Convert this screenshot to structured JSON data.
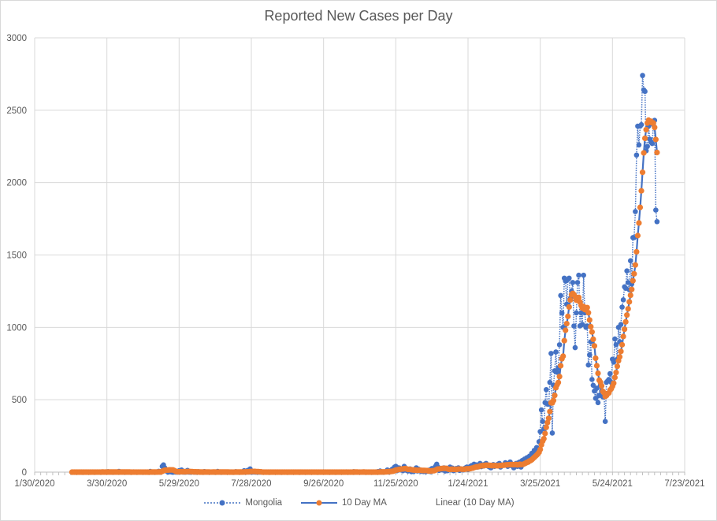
{
  "chart_data": {
    "type": "line",
    "title": "Reported New Cases per Day",
    "xlabel": "",
    "ylabel": "",
    "x_ticks": [
      "1/30/2020",
      "3/30/2020",
      "5/29/2020",
      "7/28/2020",
      "9/26/2020",
      "11/25/2020",
      "1/24/2021",
      "3/25/2021",
      "5/24/2021",
      "7/23/2021"
    ],
    "xlim": [
      "1/30/2020",
      "7/23/2021"
    ],
    "ylim": [
      0,
      3000
    ],
    "y_ticks": [
      0,
      500,
      1000,
      1500,
      2000,
      2500,
      3000
    ],
    "grid": true,
    "legend_position": "bottom",
    "x_start": "3/1/2020",
    "x_step": "1 day",
    "series": [
      {
        "name": "Mongolia",
        "color": "#4472C4",
        "style": "dotted line with circle markers",
        "values": [
          0,
          0,
          0,
          0,
          0,
          0,
          0,
          0,
          1,
          0,
          0,
          0,
          0,
          0,
          1,
          0,
          0,
          1,
          0,
          1,
          0,
          0,
          1,
          0,
          0,
          2,
          0,
          0,
          1,
          1,
          3,
          0,
          0,
          0,
          1,
          0,
          0,
          0,
          0,
          5,
          2,
          0,
          0,
          0,
          0,
          0,
          0,
          0,
          0,
          0,
          1,
          2,
          0,
          0,
          0,
          0,
          1,
          0,
          0,
          0,
          1,
          0,
          0,
          0,
          0,
          5,
          0,
          0,
          0,
          0,
          1,
          0,
          6,
          0,
          3,
          40,
          50,
          30,
          10,
          5,
          0,
          12,
          3,
          0,
          0,
          2,
          0,
          0,
          0,
          10,
          0,
          15,
          0,
          0,
          5,
          0,
          12,
          0,
          0,
          0,
          2,
          0,
          0,
          0,
          0,
          3,
          0,
          0,
          0,
          0,
          4,
          0,
          0,
          0,
          0,
          0,
          0,
          1,
          0,
          0,
          0,
          5,
          0,
          0,
          0,
          0,
          0,
          0,
          0,
          0,
          0,
          0,
          2,
          0,
          0,
          0,
          3,
          0,
          0,
          0,
          0,
          0,
          0,
          10,
          0,
          0,
          12,
          0,
          22,
          0,
          0,
          2,
          0,
          0,
          0,
          0,
          0,
          0,
          2,
          0,
          0,
          0,
          0,
          0,
          0,
          0,
          0,
          0,
          1,
          0,
          0,
          0,
          0,
          0,
          0,
          0,
          0,
          0,
          0,
          1,
          0,
          0,
          0,
          0,
          0,
          0,
          0,
          0,
          0,
          0,
          0,
          0,
          0,
          0,
          0,
          0,
          0,
          1,
          0,
          0,
          0,
          0,
          0,
          0,
          0,
          0,
          0,
          0,
          0,
          2,
          0,
          0,
          0,
          0,
          0,
          0,
          0,
          0,
          0,
          0,
          1,
          0,
          0,
          0,
          0,
          0,
          0,
          0,
          2,
          0,
          0,
          0,
          0,
          0,
          3,
          0,
          0,
          0,
          0,
          0,
          0,
          0,
          2,
          0,
          0,
          0,
          0,
          0,
          0,
          0,
          0,
          0,
          0,
          0,
          4,
          0,
          8,
          0,
          0,
          1,
          2,
          3,
          15,
          0,
          10,
          5,
          20,
          12,
          35,
          40,
          10,
          30,
          28,
          15,
          20,
          10,
          40,
          18,
          12,
          8,
          15,
          22,
          3,
          10,
          5,
          12,
          30,
          8,
          20,
          10,
          5,
          12,
          4,
          8,
          3,
          10,
          6,
          15,
          3,
          25,
          10,
          20,
          40,
          55,
          35,
          12,
          20,
          25,
          15,
          30,
          8,
          18,
          10,
          22,
          35,
          15,
          28,
          10,
          20,
          25,
          18,
          30,
          12,
          22,
          20,
          15,
          25,
          30,
          35,
          18,
          25,
          40,
          45,
          30,
          55,
          40,
          50,
          35,
          45,
          60,
          38,
          50,
          42,
          55,
          60,
          45,
          40,
          35,
          30,
          48,
          52,
          40,
          45,
          50,
          55,
          60,
          35,
          45,
          48,
          50,
          65,
          55,
          40,
          60,
          70,
          45,
          50,
          30,
          55,
          60,
          40,
          65,
          70,
          35,
          80,
          60,
          90,
          75,
          100,
          85,
          110,
          95,
          130,
          120,
          150,
          140,
          170,
          160,
          210,
          280,
          430,
          350,
          300,
          480,
          570,
          470,
          470,
          620,
          820,
          270,
          600,
          700,
          830,
          690,
          720,
          880,
          1220,
          1100,
          1000,
          1340,
          1320,
          1160,
          1330,
          1340,
          1200,
          1250,
          1310,
          1010,
          860,
          1100,
          1310,
          1360,
          1010,
          1100,
          1020,
          1360,
          1100,
          1000,
          1010,
          740,
          810,
          900,
          640,
          600,
          560,
          510,
          580,
          480,
          530,
          600,
          560,
          520,
          540,
          350,
          620,
          630,
          640,
          680,
          620,
          780,
          760,
          920,
          880,
          780,
          1000,
          900,
          1020,
          1140,
          1190,
          1280,
          1270,
          1390,
          1310,
          1260,
          1460,
          1300,
          1620,
          1620,
          1800,
          2190,
          2390,
          2260,
          2390,
          2400,
          2740,
          2640,
          2630,
          2220,
          2250,
          2390,
          2300,
          2280,
          2270,
          2400,
          2430,
          1810,
          1730
        ]
      },
      {
        "name": "10 Day MA",
        "color": "#ED7D31",
        "line_color": "#4472C4",
        "style": "solid line with circle markers",
        "window": 10
      },
      {
        "name": "Linear (10 Day MA)",
        "style": "trendline"
      }
    ]
  }
}
